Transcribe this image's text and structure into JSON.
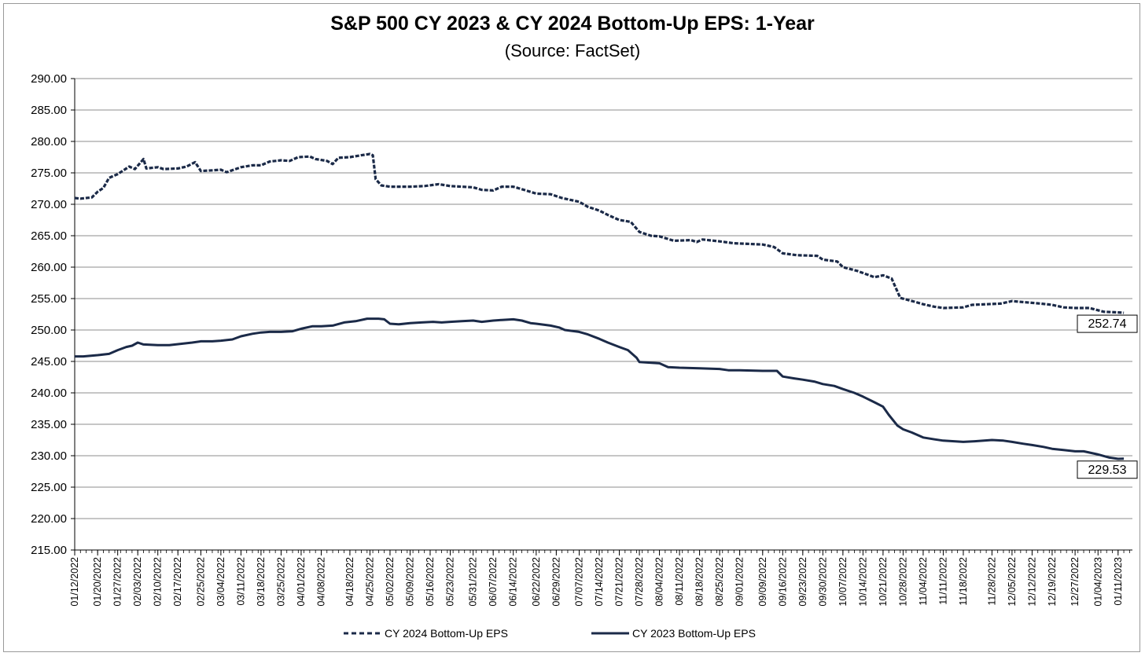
{
  "chart_data": {
    "type": "line",
    "title": "S&P 500 CY 2023 & CY 2024 Bottom-Up  EPS: 1-Year",
    "subtitle": "(Source: FactSet)",
    "xlabel": "",
    "ylabel": "",
    "ylim": [
      215,
      290
    ],
    "yticks": [
      "290.00",
      "285.00",
      "280.00",
      "275.00",
      "270.00",
      "265.00",
      "260.00",
      "255.00",
      "250.00",
      "245.00",
      "240.00",
      "235.00",
      "230.00",
      "225.00",
      "220.00",
      "215.00"
    ],
    "grid": true,
    "legend_position": "bottom",
    "xlim": [
      "01/12/2022",
      "01/16/2023"
    ],
    "x_tick_labels": [
      "01/12/2022",
      "01/20/2022",
      "01/27/2022",
      "02/03/2022",
      "02/10/2022",
      "02/17/2022",
      "02/25/2022",
      "03/04/2022",
      "03/11/2022",
      "03/18/2022",
      "03/25/2022",
      "04/01/2022",
      "04/08/2022",
      "04/18/2022",
      "04/25/2022",
      "05/02/2022",
      "05/09/2022",
      "05/16/2022",
      "05/23/2022",
      "05/31/2022",
      "06/07/2022",
      "06/14/2022",
      "06/22/2022",
      "06/29/2022",
      "07/07/2022",
      "07/14/2022",
      "07/21/2022",
      "07/28/2022",
      "08/04/2022",
      "08/11/2022",
      "08/18/2022",
      "08/25/2022",
      "09/01/2022",
      "09/09/2022",
      "09/16/2022",
      "09/23/2022",
      "09/30/2022",
      "10/07/2022",
      "10/14/2022",
      "10/21/2022",
      "10/28/2022",
      "11/04/2022",
      "11/11/2022",
      "11/18/2022",
      "11/28/2022",
      "12/05/2022",
      "12/12/2022",
      "12/19/2022",
      "12/27/2022",
      "01/04/2023",
      "01/11/2023"
    ],
    "series": [
      {
        "name": "CY 2024 Bottom-Up EPS",
        "color": "#1b2a48",
        "dash": "dashed",
        "end_label": "252.74",
        "points": [
          [
            "01/12/2022",
            271.0
          ],
          [
            "01/14/2022",
            270.9
          ],
          [
            "01/18/2022",
            271.1
          ],
          [
            "01/20/2022",
            272.0
          ],
          [
            "01/22/2022",
            272.6
          ],
          [
            "01/24/2022",
            274.2
          ],
          [
            "01/27/2022",
            274.8
          ],
          [
            "01/31/2022",
            276.0
          ],
          [
            "02/02/2022",
            275.6
          ],
          [
            "02/05/2022",
            277.2
          ],
          [
            "02/06/2022",
            275.7
          ],
          [
            "02/10/2022",
            275.9
          ],
          [
            "02/12/2022",
            275.6
          ],
          [
            "02/17/2022",
            275.7
          ],
          [
            "02/20/2022",
            276.0
          ],
          [
            "02/23/2022",
            276.7
          ],
          [
            "02/25/2022",
            275.3
          ],
          [
            "03/01/2022",
            275.4
          ],
          [
            "03/04/2022",
            275.5
          ],
          [
            "03/06/2022",
            275.1
          ],
          [
            "03/11/2022",
            275.9
          ],
          [
            "03/15/2022",
            276.2
          ],
          [
            "03/18/2022",
            276.2
          ],
          [
            "03/21/2022",
            276.8
          ],
          [
            "03/25/2022",
            277.0
          ],
          [
            "03/28/2022",
            276.9
          ],
          [
            "03/31/2022",
            277.5
          ],
          [
            "04/04/2022",
            277.6
          ],
          [
            "04/06/2022",
            277.2
          ],
          [
            "04/10/2022",
            276.9
          ],
          [
            "04/12/2022",
            276.4
          ],
          [
            "04/14/2022",
            277.4
          ],
          [
            "04/18/2022",
            277.5
          ],
          [
            "04/22/2022",
            277.8
          ],
          [
            "04/25/2022",
            278.0
          ],
          [
            "04/26/2022",
            277.8
          ],
          [
            "04/27/2022",
            274.0
          ],
          [
            "04/29/2022",
            273.0
          ],
          [
            "05/02/2022",
            272.8
          ],
          [
            "05/09/2022",
            272.8
          ],
          [
            "05/14/2022",
            272.9
          ],
          [
            "05/19/2022",
            273.2
          ],
          [
            "05/23/2022",
            272.9
          ],
          [
            "05/31/2022",
            272.7
          ],
          [
            "06/03/2022",
            272.3
          ],
          [
            "06/07/2022",
            272.2
          ],
          [
            "06/10/2022",
            272.8
          ],
          [
            "06/14/2022",
            272.8
          ],
          [
            "06/17/2022",
            272.4
          ],
          [
            "06/22/2022",
            271.7
          ],
          [
            "06/27/2022",
            271.6
          ],
          [
            "07/01/2022",
            271.0
          ],
          [
            "07/07/2022",
            270.4
          ],
          [
            "07/10/2022",
            269.6
          ],
          [
            "07/14/2022",
            269.0
          ],
          [
            "07/17/2022",
            268.3
          ],
          [
            "07/21/2022",
            267.5
          ],
          [
            "07/25/2022",
            267.2
          ],
          [
            "07/28/2022",
            265.6
          ],
          [
            "08/01/2022",
            265.0
          ],
          [
            "08/04/2022",
            264.9
          ],
          [
            "08/09/2022",
            264.2
          ],
          [
            "08/15/2022",
            264.3
          ],
          [
            "08/17/2022",
            264.0
          ],
          [
            "08/19/2022",
            264.4
          ],
          [
            "08/25/2022",
            264.1
          ],
          [
            "08/30/2022",
            263.8
          ],
          [
            "09/04/2022",
            263.7
          ],
          [
            "09/09/2022",
            263.6
          ],
          [
            "09/13/2022",
            263.2
          ],
          [
            "09/16/2022",
            262.2
          ],
          [
            "09/21/2022",
            261.9
          ],
          [
            "09/28/2022",
            261.8
          ],
          [
            "09/30/2022",
            261.2
          ],
          [
            "10/05/2022",
            260.9
          ],
          [
            "10/07/2022",
            260.0
          ],
          [
            "10/12/2022",
            259.4
          ],
          [
            "10/18/2022",
            258.4
          ],
          [
            "10/21/2022",
            258.7
          ],
          [
            "10/24/2022",
            258.2
          ],
          [
            "10/27/2022",
            255.1
          ],
          [
            "11/01/2022",
            254.5
          ],
          [
            "11/04/2022",
            254.1
          ],
          [
            "11/08/2022",
            253.7
          ],
          [
            "11/11/2022",
            253.5
          ],
          [
            "11/18/2022",
            253.6
          ],
          [
            "11/21/2022",
            254.0
          ],
          [
            "11/26/2022",
            254.1
          ],
          [
            "12/01/2022",
            254.2
          ],
          [
            "12/05/2022",
            254.6
          ],
          [
            "12/10/2022",
            254.4
          ],
          [
            "12/15/2022",
            254.2
          ],
          [
            "12/19/2022",
            254.0
          ],
          [
            "12/23/2022",
            253.6
          ],
          [
            "12/27/2022",
            253.5
          ],
          [
            "01/01/2023",
            253.5
          ],
          [
            "01/06/2023",
            252.9
          ],
          [
            "01/11/2023",
            252.8
          ],
          [
            "01/13/2023",
            252.74
          ]
        ]
      },
      {
        "name": "CY 2023 Bottom-Up EPS",
        "color": "#1b2a48",
        "dash": "solid",
        "end_label": "229.53",
        "points": [
          [
            "01/12/2022",
            245.8
          ],
          [
            "01/15/2022",
            245.8
          ],
          [
            "01/20/2022",
            246.0
          ],
          [
            "01/24/2022",
            246.2
          ],
          [
            "01/27/2022",
            246.8
          ],
          [
            "01/30/2022",
            247.3
          ],
          [
            "02/01/2022",
            247.5
          ],
          [
            "02/03/2022",
            248.0
          ],
          [
            "02/05/2022",
            247.7
          ],
          [
            "02/10/2022",
            247.6
          ],
          [
            "02/14/2022",
            247.6
          ],
          [
            "02/18/2022",
            247.8
          ],
          [
            "02/22/2022",
            248.0
          ],
          [
            "02/25/2022",
            248.2
          ],
          [
            "03/01/2022",
            248.2
          ],
          [
            "03/04/2022",
            248.3
          ],
          [
            "03/08/2022",
            248.5
          ],
          [
            "03/11/2022",
            249.0
          ],
          [
            "03/15/2022",
            249.4
          ],
          [
            "03/18/2022",
            249.6
          ],
          [
            "03/21/2022",
            249.7
          ],
          [
            "03/25/2022",
            249.7
          ],
          [
            "03/29/2022",
            249.8
          ],
          [
            "04/01/2022",
            250.2
          ],
          [
            "04/05/2022",
            250.6
          ],
          [
            "04/08/2022",
            250.6
          ],
          [
            "04/12/2022",
            250.7
          ],
          [
            "04/16/2022",
            251.2
          ],
          [
            "04/20/2022",
            251.4
          ],
          [
            "04/24/2022",
            251.8
          ],
          [
            "04/28/2022",
            251.8
          ],
          [
            "04/30/2022",
            251.7
          ],
          [
            "05/02/2022",
            251.0
          ],
          [
            "05/05/2022",
            250.9
          ],
          [
            "05/09/2022",
            251.1
          ],
          [
            "05/13/2022",
            251.2
          ],
          [
            "05/17/2022",
            251.3
          ],
          [
            "05/20/2022",
            251.2
          ],
          [
            "05/23/2022",
            251.3
          ],
          [
            "05/27/2022",
            251.4
          ],
          [
            "05/31/2022",
            251.5
          ],
          [
            "06/03/2022",
            251.3
          ],
          [
            "06/07/2022",
            251.5
          ],
          [
            "06/10/2022",
            251.6
          ],
          [
            "06/14/2022",
            251.7
          ],
          [
            "06/17/2022",
            251.5
          ],
          [
            "06/20/2022",
            251.1
          ],
          [
            "06/22/2022",
            251.0
          ],
          [
            "06/27/2022",
            250.7
          ],
          [
            "06/30/2022",
            250.4
          ],
          [
            "07/02/2022",
            250.0
          ],
          [
            "07/07/2022",
            249.7
          ],
          [
            "07/10/2022",
            249.3
          ],
          [
            "07/14/2022",
            248.6
          ],
          [
            "07/17/2022",
            248.0
          ],
          [
            "07/21/2022",
            247.3
          ],
          [
            "07/24/2022",
            246.8
          ],
          [
            "07/27/2022",
            245.6
          ],
          [
            "07/28/2022",
            244.9
          ],
          [
            "08/04/2022",
            244.7
          ],
          [
            "08/07/2022",
            244.1
          ],
          [
            "08/11/2022",
            244.0
          ],
          [
            "08/18/2022",
            243.9
          ],
          [
            "08/25/2022",
            243.8
          ],
          [
            "08/28/2022",
            243.6
          ],
          [
            "09/01/2022",
            243.6
          ],
          [
            "09/09/2022",
            243.5
          ],
          [
            "09/14/2022",
            243.5
          ],
          [
            "09/16/2022",
            242.6
          ],
          [
            "09/20/2022",
            242.3
          ],
          [
            "09/23/2022",
            242.1
          ],
          [
            "09/27/2022",
            241.8
          ],
          [
            "09/30/2022",
            241.4
          ],
          [
            "10/04/2022",
            241.1
          ],
          [
            "10/07/2022",
            240.6
          ],
          [
            "10/11/2022",
            240.0
          ],
          [
            "10/14/2022",
            239.4
          ],
          [
            "10/18/2022",
            238.5
          ],
          [
            "10/21/2022",
            237.8
          ],
          [
            "10/23/2022",
            236.5
          ],
          [
            "10/26/2022",
            234.8
          ],
          [
            "10/28/2022",
            234.2
          ],
          [
            "10/31/2022",
            233.7
          ],
          [
            "11/04/2022",
            232.9
          ],
          [
            "11/08/2022",
            232.6
          ],
          [
            "11/11/2022",
            232.4
          ],
          [
            "11/18/2022",
            232.2
          ],
          [
            "11/22/2022",
            232.3
          ],
          [
            "11/28/2022",
            232.5
          ],
          [
            "12/02/2022",
            232.4
          ],
          [
            "12/05/2022",
            232.2
          ],
          [
            "12/09/2022",
            231.9
          ],
          [
            "12/12/2022",
            231.7
          ],
          [
            "12/16/2022",
            231.4
          ],
          [
            "12/19/2022",
            231.1
          ],
          [
            "12/23/2022",
            230.9
          ],
          [
            "12/27/2022",
            230.7
          ],
          [
            "12/30/2022",
            230.7
          ],
          [
            "01/04/2023",
            230.2
          ],
          [
            "01/08/2023",
            229.7
          ],
          [
            "01/11/2023",
            229.5
          ],
          [
            "01/13/2023",
            229.53
          ]
        ]
      }
    ]
  }
}
